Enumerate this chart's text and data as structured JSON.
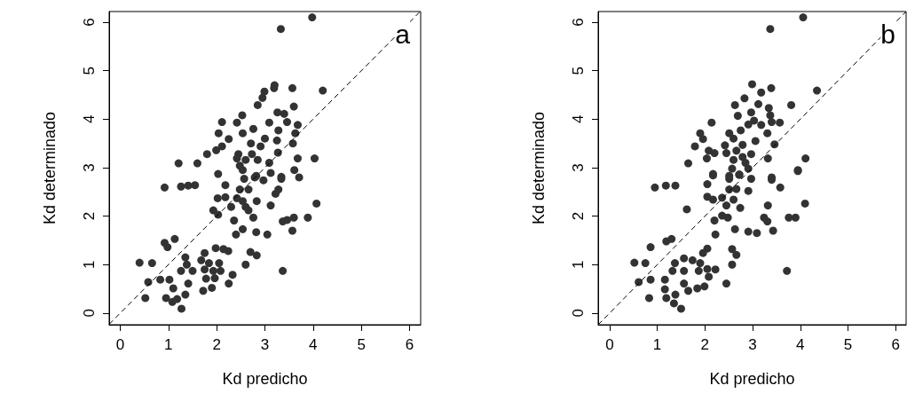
{
  "chart_data": [
    {
      "type": "scatter",
      "xlabel": "Kd predicho",
      "ylabel": "Kd determinado",
      "annotations": [
        "a"
      ],
      "xlim": [
        -0.23,
        6.23
      ],
      "ylim": [
        -0.24,
        6.22
      ],
      "xticks": [
        0,
        1,
        2,
        3,
        4,
        5,
        6
      ],
      "yticks": [
        0,
        1,
        2,
        3,
        4,
        5,
        6
      ],
      "grid": false,
      "marker": "circle",
      "series": [
        {
          "color": "#333333",
          "x": [
            3.98,
            3.33,
            3.2,
            3.19,
            2.99,
            2.95,
            3.57,
            4.2,
            2.85,
            3.6,
            2.53,
            2.11,
            2.42,
            3.26,
            3.4,
            3.09,
            3.46,
            3.68,
            2.04,
            2.54,
            2.76,
            3.28,
            3.63,
            2.25,
            3.0,
            3.25,
            2.11,
            1.99,
            2.71,
            3.58,
            2.91,
            1.8,
            2.45,
            2.73,
            3.27,
            3.68,
            4.03,
            2.42,
            2.6,
            2.85,
            3.09,
            1.21,
            1.6,
            2.48,
            2.54,
            3.12,
            3.61,
            2.03,
            3.34,
            3.71,
            2.82,
            2.57,
            2.79,
            2.97,
            3.34,
            2.18,
            0.92,
            1.26,
            1.41,
            1.55,
            2.48,
            2.66,
            3.28,
            3.22,
            2.02,
            2.18,
            2.42,
            2.54,
            2.83,
            4.07,
            2.3,
            2.6,
            2.66,
            3.12,
            1.93,
            2.03,
            2.76,
            3.37,
            3.46,
            3.6,
            3.89,
            2.36,
            2.54,
            2.4,
            2.82,
            3.05,
            3.57,
            0.92,
            1.13,
            0.98,
            1.98,
            2.14,
            2.24,
            2.7,
            2.83,
            1.75,
            1.35,
            0.4,
            0.66,
            1.38,
            1.68,
            1.84,
            2.05,
            2.6,
            1.26,
            1.5,
            1.75,
            1.93,
            2.08,
            3.37,
            2.33,
            1.78,
            1.96,
            0.83,
            1.02,
            0.58,
            1.41,
            2.25,
            1.1,
            1.72,
            1.9,
            1.35,
            0.95,
            0.52,
            1.08,
            1.27,
            1.18
          ],
          "values": [
            6.1,
            5.86,
            4.7,
            4.64,
            4.57,
            4.44,
            4.64,
            4.59,
            4.29,
            4.26,
            4.08,
            3.94,
            3.93,
            4.14,
            4.11,
            3.93,
            3.94,
            3.88,
            3.71,
            3.71,
            3.8,
            3.77,
            3.71,
            3.59,
            3.6,
            3.56,
            3.44,
            3.36,
            3.5,
            3.5,
            3.44,
            3.28,
            3.28,
            3.28,
            3.31,
            3.19,
            3.19,
            3.19,
            3.16,
            3.16,
            3.1,
            3.09,
            3.09,
            3.04,
            2.95,
            2.89,
            2.95,
            2.87,
            2.81,
            2.8,
            2.83,
            2.77,
            2.8,
            2.74,
            2.77,
            2.64,
            2.59,
            2.61,
            2.63,
            2.64,
            2.55,
            2.55,
            2.55,
            2.46,
            2.37,
            2.39,
            2.37,
            2.31,
            2.31,
            2.26,
            2.19,
            2.19,
            2.12,
            2.22,
            2.12,
            2.03,
            1.97,
            1.89,
            1.92,
            1.97,
            1.97,
            1.91,
            1.73,
            1.62,
            1.67,
            1.62,
            1.7,
            1.45,
            1.53,
            1.36,
            1.34,
            1.32,
            1.28,
            1.26,
            1.19,
            1.24,
            1.15,
            1.04,
            1.03,
            1.0,
            1.09,
            1.03,
            1.03,
            1.0,
            0.87,
            0.87,
            0.9,
            0.87,
            0.87,
            0.87,
            0.79,
            0.71,
            0.72,
            0.69,
            0.69,
            0.64,
            0.61,
            0.61,
            0.51,
            0.46,
            0.52,
            0.38,
            0.31,
            0.31,
            0.23,
            0.09,
            0.29
          ]
        },
        {
          "type": "line",
          "color": "#000000",
          "line_style": "dashed",
          "marker": "none",
          "x": [
            -0.23,
            6.22
          ],
          "values": [
            -0.23,
            6.22
          ]
        }
      ]
    },
    {
      "type": "scatter",
      "xlabel": "Kd predicho",
      "ylabel": "Kd determinado",
      "annotations": [
        "b"
      ],
      "xlim": [
        -0.24,
        6.22
      ],
      "ylim": [
        -0.24,
        6.22
      ],
      "xticks": [
        0,
        1,
        2,
        3,
        4,
        5,
        6
      ],
      "yticks": [
        0,
        1,
        2,
        3,
        4,
        5,
        6
      ],
      "grid": false,
      "marker": "circle",
      "series": [
        {
          "color": "#333333",
          "x": [
            4.06,
            3.37,
            2.99,
            3.39,
            3.18,
            4.35,
            2.83,
            2.63,
            3.12,
            3.81,
            2.69,
            2.97,
            3.34,
            3.37,
            2.14,
            3.03,
            3.18,
            3.57,
            3.4,
            2.91,
            1.9,
            2.51,
            2.75,
            3.31,
            1.96,
            2.6,
            3.06,
            3.46,
            1.79,
            2.42,
            2.79,
            2.08,
            2.2,
            2.45,
            2.66,
            2.97,
            2.79,
            1.65,
            2.04,
            2.6,
            2.85,
            3.32,
            4.11,
            2.57,
            2.91,
            3.95,
            2.17,
            2.51,
            3.4,
            2.72,
            0.95,
            1.18,
            1.38,
            2.17,
            2.51,
            2.72,
            2.97,
            3.4,
            3.58,
            3.95,
            2.05,
            2.51,
            2.66,
            2.91,
            2.05,
            2.17,
            2.36,
            2.45,
            2.6,
            2.74,
            3.32,
            4.1,
            1.62,
            2.2,
            2.36,
            2.48,
            3.24,
            3.31,
            3.76,
            3.9,
            2.63,
            2.22,
            2.91,
            3.09,
            3.43,
            0.86,
            1.19,
            1.3,
            2.05,
            1.96,
            2.57,
            2.66,
            0.52,
            0.75,
            1.37,
            1.56,
            1.74,
            1.9,
            2.57,
            1.32,
            1.56,
            1.87,
            2.05,
            2.22,
            3.72,
            2.08,
            0.61,
            0.86,
            1.16,
            1.56,
            2.45,
            1.99,
            1.16,
            1.65,
            1.84,
            1.38,
            0.83,
            1.19,
            1.35,
            1.5
          ],
          "values": [
            6.1,
            5.86,
            4.72,
            4.64,
            4.55,
            4.59,
            4.43,
            4.29,
            4.31,
            4.29,
            4.07,
            4.14,
            4.23,
            4.08,
            3.93,
            3.97,
            3.88,
            3.93,
            3.94,
            3.89,
            3.71,
            3.71,
            3.77,
            3.71,
            3.59,
            3.6,
            3.55,
            3.48,
            3.44,
            3.46,
            3.47,
            3.35,
            3.3,
            3.3,
            3.35,
            3.28,
            3.22,
            3.09,
            3.19,
            3.16,
            3.1,
            3.19,
            3.19,
            2.98,
            2.98,
            2.95,
            2.87,
            2.83,
            2.8,
            2.85,
            2.59,
            2.63,
            2.63,
            2.84,
            2.77,
            2.86,
            2.77,
            2.75,
            2.59,
            2.93,
            2.66,
            2.55,
            2.56,
            2.52,
            2.4,
            2.34,
            2.38,
            2.22,
            2.34,
            2.17,
            2.22,
            2.26,
            2.14,
            1.91,
            2.01,
            1.97,
            1.97,
            1.89,
            1.97,
            1.97,
            1.73,
            1.62,
            1.68,
            1.65,
            1.7,
            1.36,
            1.48,
            1.53,
            1.33,
            1.24,
            1.32,
            1.2,
            1.04,
            1.03,
            1.03,
            1.13,
            1.09,
            1.03,
            1.0,
            0.87,
            0.87,
            0.87,
            0.91,
            0.9,
            0.87,
            0.75,
            0.64,
            0.69,
            0.69,
            0.61,
            0.61,
            0.55,
            0.49,
            0.46,
            0.51,
            0.38,
            0.31,
            0.31,
            0.2,
            0.09
          ]
        },
        {
          "type": "line",
          "color": "#000000",
          "line_style": "dashed",
          "marker": "none",
          "x": [
            -0.24,
            6.22
          ],
          "values": [
            -0.24,
            6.22
          ]
        }
      ]
    }
  ]
}
